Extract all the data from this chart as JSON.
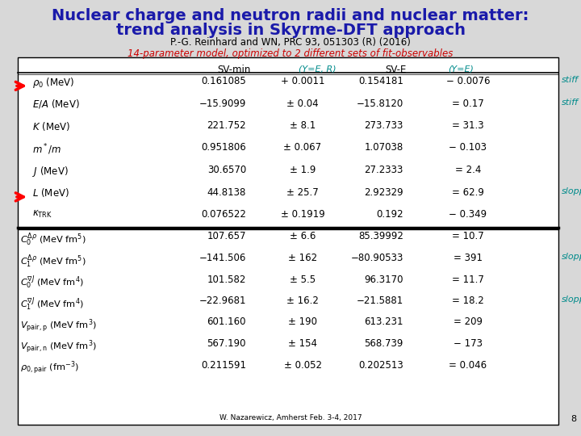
{
  "title_line1": "Nuclear charge and neutron radii and nuclear matter:",
  "title_line2": "trend analysis in Skyrme-DFT approach",
  "subtitle": "P.-G. Reinhard and WN, PRC 93, 051303 (R) (2016)",
  "red_subtitle": "14-parameter model, optimized to 2 different sets of fit-observables",
  "footer": "W. Nazarewicz, Amherst Feb. 3-4, 2017",
  "page_num": "8",
  "title_color": "#1a1aaa",
  "subtitle_color": "#000000",
  "red_color": "#cc0000",
  "teal_color": "#008b8b",
  "bg_color": "#d8d8d8",
  "table_bg": "#ffffff",
  "rows_top": [
    {
      "label": "$\\rho_0$ (MeV)",
      "v1": "0.161085",
      "pm1": "+ 0.0011",
      "v2": "0.154181",
      "pm2": "− 0.0076",
      "tag": "stiff",
      "arrow": true
    },
    {
      "label": "$E/A$ (MeV)",
      "v1": "−15.9099",
      "pm1": "± 0.04",
      "v2": "−15.8120",
      "pm2": "= 0.17",
      "tag": "stiff",
      "arrow": false
    },
    {
      "label": "$K$ (MeV)",
      "v1": "221.752",
      "pm1": "± 8.1",
      "v2": "273.733",
      "pm2": "= 31.3",
      "tag": "",
      "arrow": false
    },
    {
      "label": "$m^*/m$",
      "v1": "0.951806",
      "pm1": "± 0.067",
      "v2": "1.07038",
      "pm2": "− 0.103",
      "tag": "",
      "arrow": false
    },
    {
      "label": "$J$ (MeV)",
      "v1": "30.6570",
      "pm1": "± 1.9",
      "v2": "27.2333",
      "pm2": "= 2.4",
      "tag": "",
      "arrow": false
    },
    {
      "label": "$L$ (MeV)",
      "v1": "44.8138",
      "pm1": "± 25.7",
      "v2": "2.92329",
      "pm2": "= 62.9",
      "tag": "sloppy",
      "arrow": true
    },
    {
      "label": "$\\kappa_{\\mathrm{TRK}}$",
      "v1": "0.076522",
      "pm1": "± 0.1919",
      "v2": "0.192",
      "pm2": "− 0.349",
      "tag": "",
      "arrow": false
    }
  ],
  "rows_bot": [
    {
      "label": "$C_0^{\\Delta\\rho}$ (MeV fm$^5$)",
      "v1": "107.657",
      "pm1": "± 6.6",
      "v2": "85.39992",
      "pm2": "= 10.7",
      "tag": "",
      "arrow": false
    },
    {
      "label": "$C_1^{\\Delta\\rho}$ (MeV fm$^5$)",
      "v1": "−141.506",
      "pm1": "± 162",
      "v2": "−80.90533",
      "pm2": "= 391",
      "tag": "sloppy",
      "arrow": false
    },
    {
      "label": "$C_0^{\\nabla J}$ (MeV fm$^4$)",
      "v1": "101.582",
      "pm1": "± 5.5",
      "v2": "96.3170",
      "pm2": "= 11.7",
      "tag": "",
      "arrow": false
    },
    {
      "label": "$C_1^{\\nabla J}$ (MeV fm$^4$)",
      "v1": "−22.9681",
      "pm1": "± 16.2",
      "v2": "−21.5881",
      "pm2": "= 18.2",
      "tag": "sloppy",
      "arrow": false
    },
    {
      "label": "$V_{\\mathrm{pair,p}}$ (MeV fm$^3$)",
      "v1": "601.160",
      "pm1": "± 190",
      "v2": "613.231",
      "pm2": "= 209",
      "tag": "",
      "arrow": false
    },
    {
      "label": "$V_{\\mathrm{pair,n}}$ (MeV fm$^3$)",
      "v1": "567.190",
      "pm1": "± 154",
      "v2": "568.739",
      "pm2": "− 173",
      "tag": "",
      "arrow": false
    },
    {
      "label": "$\\rho_{0,\\mathrm{pair}}$ (fm$^{-3}$)",
      "v1": "0.211591",
      "pm1": "± 0.052",
      "v2": "0.202513",
      "pm2": "= 0.046",
      "tag": "",
      "arrow": false
    }
  ]
}
